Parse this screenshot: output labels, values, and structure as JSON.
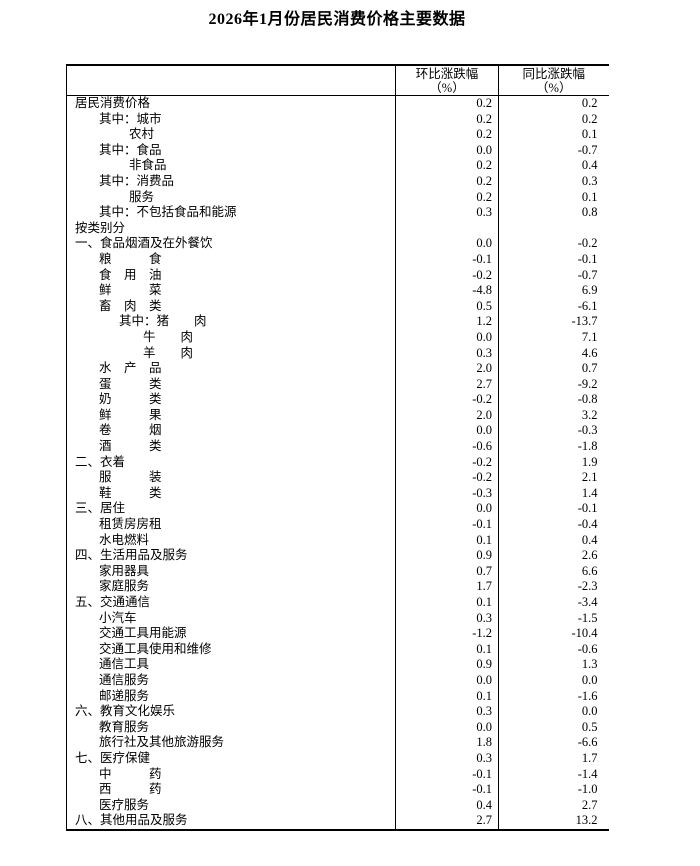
{
  "page": {
    "title": "2026年1月份居民消费价格主要数据"
  },
  "chart_data": {
    "type": "table",
    "title": "2026年1月份居民消费价格主要数据",
    "columns": [
      {
        "title": "环比涨跌幅",
        "unit": "（%）"
      },
      {
        "title": "同比涨跌幅",
        "unit": "（%）"
      }
    ],
    "rows": [
      {
        "label": "居民消费价格",
        "level": 0,
        "mom": "0.2",
        "yoy": "0.2"
      },
      {
        "label": "其中：城市",
        "level": 1,
        "mom": "0.2",
        "yoy": "0.2"
      },
      {
        "label": "农村",
        "level": 3,
        "mom": "0.2",
        "yoy": "0.1"
      },
      {
        "label": "其中：食品",
        "level": 1,
        "mom": "0.0",
        "yoy": "-0.7"
      },
      {
        "label": "非食品",
        "level": 3,
        "mom": "0.2",
        "yoy": "0.4"
      },
      {
        "label": "其中：消费品",
        "level": 1,
        "mom": "0.2",
        "yoy": "0.3"
      },
      {
        "label": "服务",
        "level": 3,
        "mom": "0.2",
        "yoy": "0.1"
      },
      {
        "label": "其中：不包括食品和能源",
        "level": 1,
        "mom": "0.3",
        "yoy": "0.8"
      },
      {
        "label": "按类别分",
        "level": 0,
        "mom": "",
        "yoy": ""
      },
      {
        "label": "一、食品烟酒及在外餐饮",
        "level": 0,
        "mom": "0.0",
        "yoy": "-0.2"
      },
      {
        "label": "粮　　　食",
        "level": 1,
        "mom": "-0.1",
        "yoy": "-0.1"
      },
      {
        "label": "食　用　油",
        "level": 1,
        "mom": "-0.2",
        "yoy": "-0.7"
      },
      {
        "label": "鲜　　　菜",
        "level": 1,
        "mom": "-4.8",
        "yoy": "6.9"
      },
      {
        "label": "畜　肉　类",
        "level": 1,
        "mom": "0.5",
        "yoy": "-6.1"
      },
      {
        "label": "其中：猪　　肉",
        "level": 2,
        "mom": "1.2",
        "yoy": "-13.7"
      },
      {
        "label": "牛　　肉",
        "level": 4,
        "mom": "0.0",
        "yoy": "7.1"
      },
      {
        "label": "羊　　肉",
        "level": 4,
        "mom": "0.3",
        "yoy": "4.6"
      },
      {
        "label": "水　产　品",
        "level": 1,
        "mom": "2.0",
        "yoy": "0.7"
      },
      {
        "label": "蛋　　　类",
        "level": 1,
        "mom": "2.7",
        "yoy": "-9.2"
      },
      {
        "label": "奶　　　类",
        "level": 1,
        "mom": "-0.2",
        "yoy": "-0.8"
      },
      {
        "label": "鲜　　　果",
        "level": 1,
        "mom": "2.0",
        "yoy": "3.2"
      },
      {
        "label": "卷　　　烟",
        "level": 1,
        "mom": "0.0",
        "yoy": "-0.3"
      },
      {
        "label": "酒　　　类",
        "level": 1,
        "mom": "-0.6",
        "yoy": "-1.8"
      },
      {
        "label": "二、衣着",
        "level": 0,
        "mom": "-0.2",
        "yoy": "1.9"
      },
      {
        "label": "服　　　装",
        "level": 1,
        "mom": "-0.2",
        "yoy": "2.1"
      },
      {
        "label": "鞋　　　类",
        "level": 1,
        "mom": "-0.3",
        "yoy": "1.4"
      },
      {
        "label": "三、居住",
        "level": 0,
        "mom": "0.0",
        "yoy": "-0.1"
      },
      {
        "label": "租赁房房租",
        "level": 1,
        "mom": "-0.1",
        "yoy": "-0.4"
      },
      {
        "label": "水电燃料",
        "level": 1,
        "mom": "0.1",
        "yoy": "0.4"
      },
      {
        "label": "四、生活用品及服务",
        "level": 0,
        "mom": "0.9",
        "yoy": "2.6"
      },
      {
        "label": "家用器具",
        "level": 1,
        "mom": "0.7",
        "yoy": "6.6"
      },
      {
        "label": "家庭服务",
        "level": 1,
        "mom": "1.7",
        "yoy": "-2.3"
      },
      {
        "label": "五、交通通信",
        "level": 0,
        "mom": "0.1",
        "yoy": "-3.4"
      },
      {
        "label": "小汽车",
        "level": 1,
        "mom": "0.3",
        "yoy": "-1.5"
      },
      {
        "label": "交通工具用能源",
        "level": 1,
        "mom": "-1.2",
        "yoy": "-10.4"
      },
      {
        "label": "交通工具使用和维修",
        "level": 1,
        "mom": "0.1",
        "yoy": "-0.6"
      },
      {
        "label": "通信工具",
        "level": 1,
        "mom": "0.9",
        "yoy": "1.3"
      },
      {
        "label": "通信服务",
        "level": 1,
        "mom": "0.0",
        "yoy": "0.0"
      },
      {
        "label": "邮递服务",
        "level": 1,
        "mom": "0.1",
        "yoy": "-1.6"
      },
      {
        "label": "六、教育文化娱乐",
        "level": 0,
        "mom": "0.3",
        "yoy": "0.0"
      },
      {
        "label": "教育服务",
        "level": 1,
        "mom": "0.0",
        "yoy": "0.5"
      },
      {
        "label": "旅行社及其他旅游服务",
        "level": 1,
        "mom": "1.8",
        "yoy": "-6.6"
      },
      {
        "label": "七、医疗保健",
        "level": 0,
        "mom": "0.3",
        "yoy": "1.7"
      },
      {
        "label": "中　　　药",
        "level": 1,
        "mom": "-0.1",
        "yoy": "-1.4"
      },
      {
        "label": "西　　　药",
        "level": 1,
        "mom": "-0.1",
        "yoy": "-1.0"
      },
      {
        "label": "医疗服务",
        "level": 1,
        "mom": "0.4",
        "yoy": "2.7"
      },
      {
        "label": "八、其他用品及服务",
        "level": 0,
        "mom": "2.7",
        "yoy": "13.2"
      }
    ]
  }
}
